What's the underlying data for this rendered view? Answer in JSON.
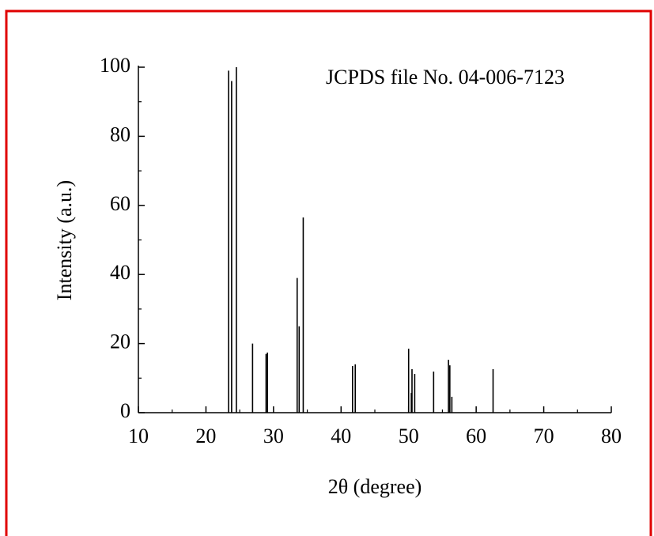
{
  "chart_data": {
    "type": "stem",
    "annotation": "JCPDS file No. 04-006-7123",
    "x_label": "2θ (degree)",
    "y_label": "Intensity (a.u.)",
    "color": "#000000",
    "x": [
      23.35,
      23.8,
      24.5,
      26.9,
      28.9,
      29.1,
      33.5,
      33.8,
      34.4,
      41.7,
      42.1,
      50.0,
      50.4,
      50.5,
      50.9,
      53.7,
      55.9,
      56.1,
      56.4,
      62.5
    ],
    "values": [
      99,
      96,
      100,
      20,
      17,
      17.4,
      39,
      25,
      56.5,
      13.5,
      14,
      18.5,
      5.7,
      12.6,
      11.2,
      11.9,
      15.3,
      13.7,
      4.6,
      12.6
    ],
    "xlim": [
      10,
      80
    ],
    "xticks": [
      10,
      20,
      30,
      40,
      50,
      60,
      70,
      80
    ],
    "xminorticks": [
      15,
      25,
      35,
      45,
      55,
      65,
      75
    ],
    "ylim": [
      0,
      100
    ],
    "yticks": [
      0,
      20,
      40,
      60,
      80,
      100
    ],
    "yminorticks": [
      10,
      30,
      50,
      70,
      90
    ]
  }
}
